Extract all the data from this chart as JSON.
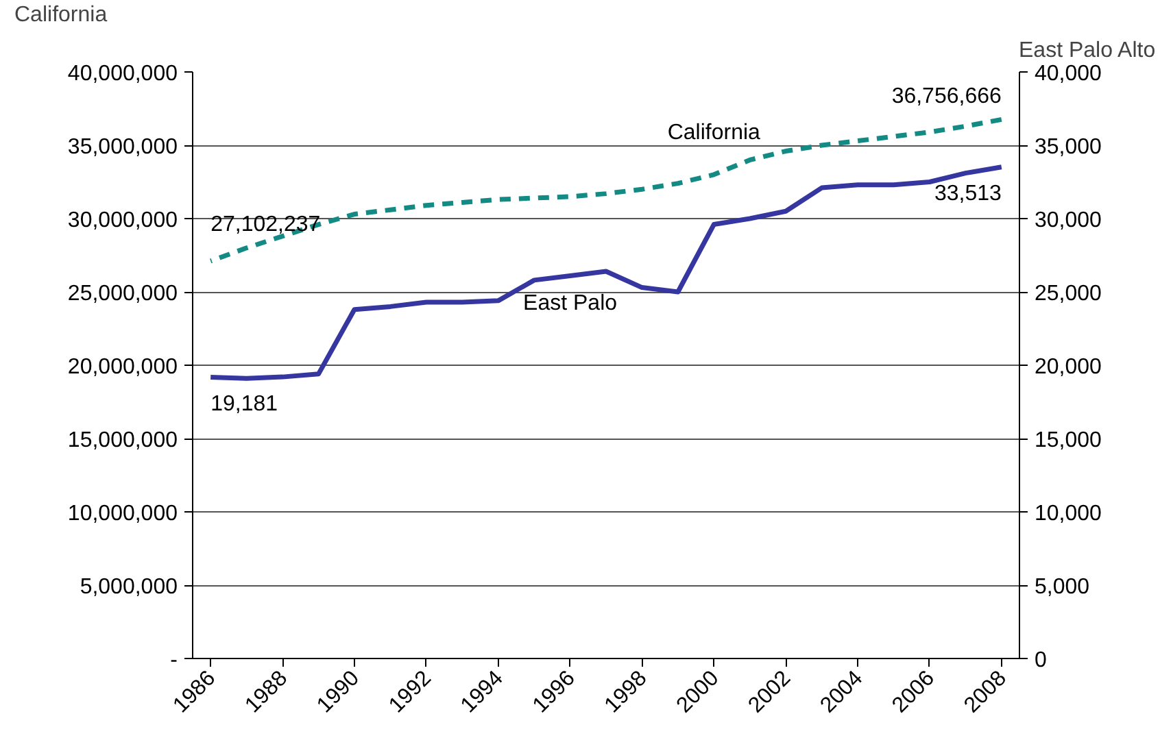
{
  "chart_data": {
    "type": "line",
    "ylabel": "California",
    "y2label": "East Palo Alto",
    "x": [
      1986,
      1987,
      1988,
      1989,
      1990,
      1991,
      1992,
      1993,
      1994,
      1995,
      1996,
      1997,
      1998,
      1999,
      2000,
      2001,
      2002,
      2003,
      2004,
      2005,
      2006,
      2007,
      2008
    ],
    "xlim": [
      1985.5,
      2008.5
    ],
    "xticks": [
      1986,
      1988,
      1990,
      1992,
      1994,
      1996,
      1998,
      2000,
      2002,
      2004,
      2006,
      2008
    ],
    "ylim": [
      0,
      40000000
    ],
    "yticks": [
      {
        "value": 0,
        "label": "-"
      },
      {
        "value": 5000000,
        "label": "5,000,000"
      },
      {
        "value": 10000000,
        "label": "10,000,000"
      },
      {
        "value": 15000000,
        "label": "15,000,000"
      },
      {
        "value": 20000000,
        "label": "20,000,000"
      },
      {
        "value": 25000000,
        "label": "25,000,000"
      },
      {
        "value": 30000000,
        "label": "30,000,000"
      },
      {
        "value": 35000000,
        "label": "35,000,000"
      },
      {
        "value": 40000000,
        "label": "40,000,000"
      }
    ],
    "y2lim": [
      0,
      40000
    ],
    "y2ticks": [
      0,
      {
        "value": 5000,
        "label": "5,000"
      },
      {
        "value": 10000,
        "label": "10,000"
      },
      {
        "value": 15000,
        "label": "15,000"
      },
      {
        "value": 20000,
        "label": "20,000"
      },
      {
        "value": 25000,
        "label": "25,000"
      },
      {
        "value": 30000,
        "label": "30,000"
      },
      {
        "value": 35000,
        "label": "35,000"
      },
      {
        "value": 40000,
        "label": "40,000"
      }
    ],
    "grid": "y",
    "series": [
      {
        "name": "California",
        "color": "#138a84",
        "line_style": "dashed",
        "values": [
          27102237,
          28000000,
          28800000,
          29600000,
          30300000,
          30600000,
          30900000,
          31100000,
          31300000,
          31400000,
          31500000,
          31700000,
          32000000,
          32400000,
          33000000,
          34000000,
          34600000,
          35000000,
          35300000,
          35600000,
          35900000,
          36300000,
          36756666
        ],
        "value_labels": [
          "27,102,237",
          null,
          null,
          null,
          null,
          null,
          null,
          null,
          null,
          null,
          null,
          null,
          null,
          null,
          null,
          null,
          null,
          null,
          null,
          null,
          null,
          null,
          "36,756,666"
        ]
      },
      {
        "name": "East Palo",
        "color": "#3636a0",
        "line_style": "solid",
        "axis": "y2",
        "values": [
          19181,
          19100,
          19200,
          19400,
          23800,
          24000,
          24300,
          24300,
          24400,
          25800,
          26100,
          26400,
          25300,
          25000,
          29600,
          30000,
          30500,
          32100,
          32300,
          32300,
          32500,
          33100,
          33513
        ],
        "value_labels": [
          "19,181",
          null,
          null,
          null,
          null,
          null,
          null,
          null,
          null,
          null,
          null,
          null,
          null,
          null,
          null,
          null,
          null,
          null,
          null,
          null,
          null,
          null,
          "33,513"
        ]
      }
    ]
  }
}
